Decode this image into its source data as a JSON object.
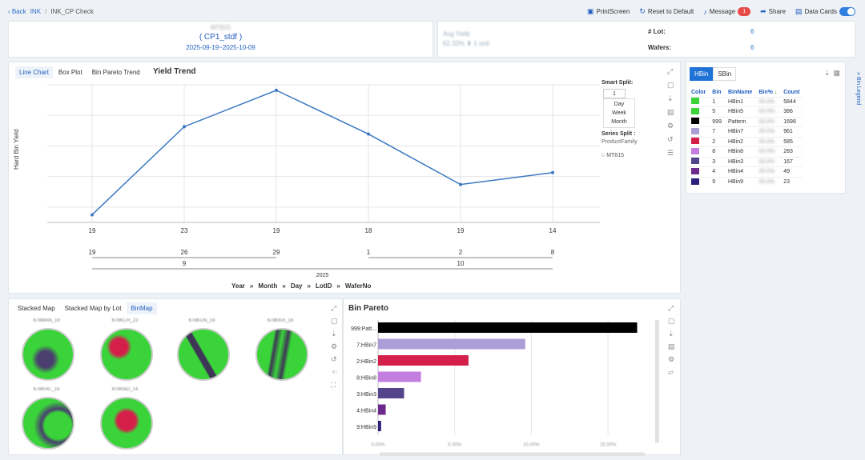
{
  "breadcrumb": {
    "back": "Back",
    "parent": "INK",
    "current": "INK_CP Check"
  },
  "toolbar": {
    "printscreen": "PrintScreen",
    "reset": "Reset to Default",
    "message": "Message",
    "message_count": "1",
    "share": "Share",
    "data_cards": "Data Cards"
  },
  "header": {
    "recipe": "( CP1_stdf )",
    "date_range": "2025-09-19~2025-10-09"
  },
  "summary": {
    "avg_yield_label": "Avg Yield",
    "lot_label": "# Lot:",
    "lot_value": "6",
    "wafers_label": "Wafers:",
    "wafers_value": "6"
  },
  "trend": {
    "tabs": [
      "Line Chart",
      "Box Plot",
      "Bin Pareto Trend"
    ],
    "title": "Yield Trend",
    "smart_split_label": "Smart Split:",
    "smart_split_value": "1",
    "split_options": [
      "Day",
      "Week",
      "Month"
    ],
    "series_split_label": "Series Split :",
    "series_split_value": "ProductFamily",
    "series_legend": "MT815",
    "breadcrumb_path": [
      "Year",
      "Month",
      "Day",
      "LotID",
      "WaferNo"
    ]
  },
  "chart_data": [
    {
      "type": "line",
      "title": "Yield Trend",
      "ylabel": "Hard Bin Yield",
      "ylim": [
        40,
        85
      ],
      "grid": true,
      "x_tick_rows": [
        [
          "19",
          "23",
          "19",
          "18",
          "19",
          "14"
        ],
        [
          "19",
          "26",
          "29",
          "1",
          "2",
          "8"
        ],
        [
          "9",
          "10"
        ],
        [
          "2025"
        ]
      ],
      "series": [
        {
          "name": "MT815",
          "values": [
            42.5,
            71.3,
            83.2,
            68.9,
            52.4,
            56.3
          ]
        }
      ]
    },
    {
      "type": "bar",
      "title": "Bin Pareto",
      "categories": [
        "999:Patt...",
        "7:HBin7",
        "2:HBin2",
        "8:HBin8",
        "3:HBin3",
        "4:HBin4",
        "9:HBin9"
      ],
      "values": [
        16.9,
        9.6,
        5.9,
        2.8,
        1.7,
        0.5,
        0.2
      ],
      "colors": [
        "#000000",
        "#ab9dd6",
        "#d41f4a",
        "#c37ee0",
        "#54448c",
        "#6d2a8c",
        "#2a1f7a"
      ],
      "xticks": [
        "0.00%",
        "5.00%",
        "10.00%",
        "15.00%"
      ],
      "xlim": [
        0,
        17.5
      ]
    }
  ],
  "bin_legend": {
    "tabs": [
      "HBin",
      "SBin"
    ],
    "columns": [
      "Color",
      "Bin",
      "BinName",
      "Bin%",
      "Count"
    ],
    "side_label": "Bin Legend",
    "rows": [
      {
        "color": "#3ad43a",
        "bin": "1",
        "name": "HBin1",
        "count": "5844"
      },
      {
        "color": "#3ad43a",
        "bin": "5",
        "name": "HBin5",
        "count": "386"
      },
      {
        "color": "#000000",
        "bin": "999",
        "name": "Pattern",
        "count": "1698"
      },
      {
        "color": "#ab9dd6",
        "bin": "7",
        "name": "HBin7",
        "count": "961"
      },
      {
        "color": "#d41f4a",
        "bin": "2",
        "name": "HBin2",
        "count": "585"
      },
      {
        "color": "#c37ee0",
        "bin": "8",
        "name": "HBin8",
        "count": "283"
      },
      {
        "color": "#54448c",
        "bin": "3",
        "name": "HBin3",
        "count": "167"
      },
      {
        "color": "#6d2a8c",
        "bin": "4",
        "name": "HBin4",
        "count": "49"
      },
      {
        "color": "#2a1f7a",
        "bin": "9",
        "name": "HBin9",
        "count": "23"
      }
    ]
  },
  "maps": {
    "tabs": [
      "Stacked Map",
      "Stacked Map by Lot",
      "BinMap"
    ]
  },
  "pareto": {
    "title": "Bin Pareto"
  }
}
